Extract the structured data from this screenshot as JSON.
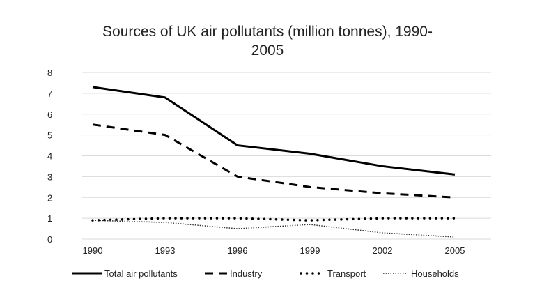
{
  "chart_data": {
    "type": "line",
    "title": "Sources of UK air pollutants (million tonnes), 1990-2005",
    "title_lines": [
      "Sources of UK air pollutants (million tonnes), 1990-",
      "2005"
    ],
    "xlabel": "",
    "ylabel": "",
    "categories": [
      "1990",
      "1993",
      "1996",
      "1999",
      "2002",
      "2005"
    ],
    "ylim": [
      0,
      8
    ],
    "yticks": [
      "0",
      "1",
      "2",
      "3",
      "4",
      "5",
      "6",
      "7",
      "8"
    ],
    "grid": true,
    "legend_position": "bottom",
    "series": [
      {
        "name": "Total air pollutants",
        "style": "solid",
        "color": "#000000",
        "values": [
          7.3,
          6.8,
          4.5,
          4.1,
          3.5,
          3.1
        ]
      },
      {
        "name": "Industry",
        "style": "dashed",
        "color": "#000000",
        "values": [
          5.5,
          5.0,
          3.0,
          2.5,
          2.2,
          2.0
        ]
      },
      {
        "name": "Transport",
        "style": "round-dotted",
        "color": "#000000",
        "values": [
          0.9,
          1.0,
          1.0,
          0.9,
          1.0,
          1.0
        ]
      },
      {
        "name": "Households",
        "style": "fine-dotted",
        "color": "#333333",
        "values": [
          0.9,
          0.8,
          0.5,
          0.7,
          0.3,
          0.1
        ]
      }
    ]
  }
}
